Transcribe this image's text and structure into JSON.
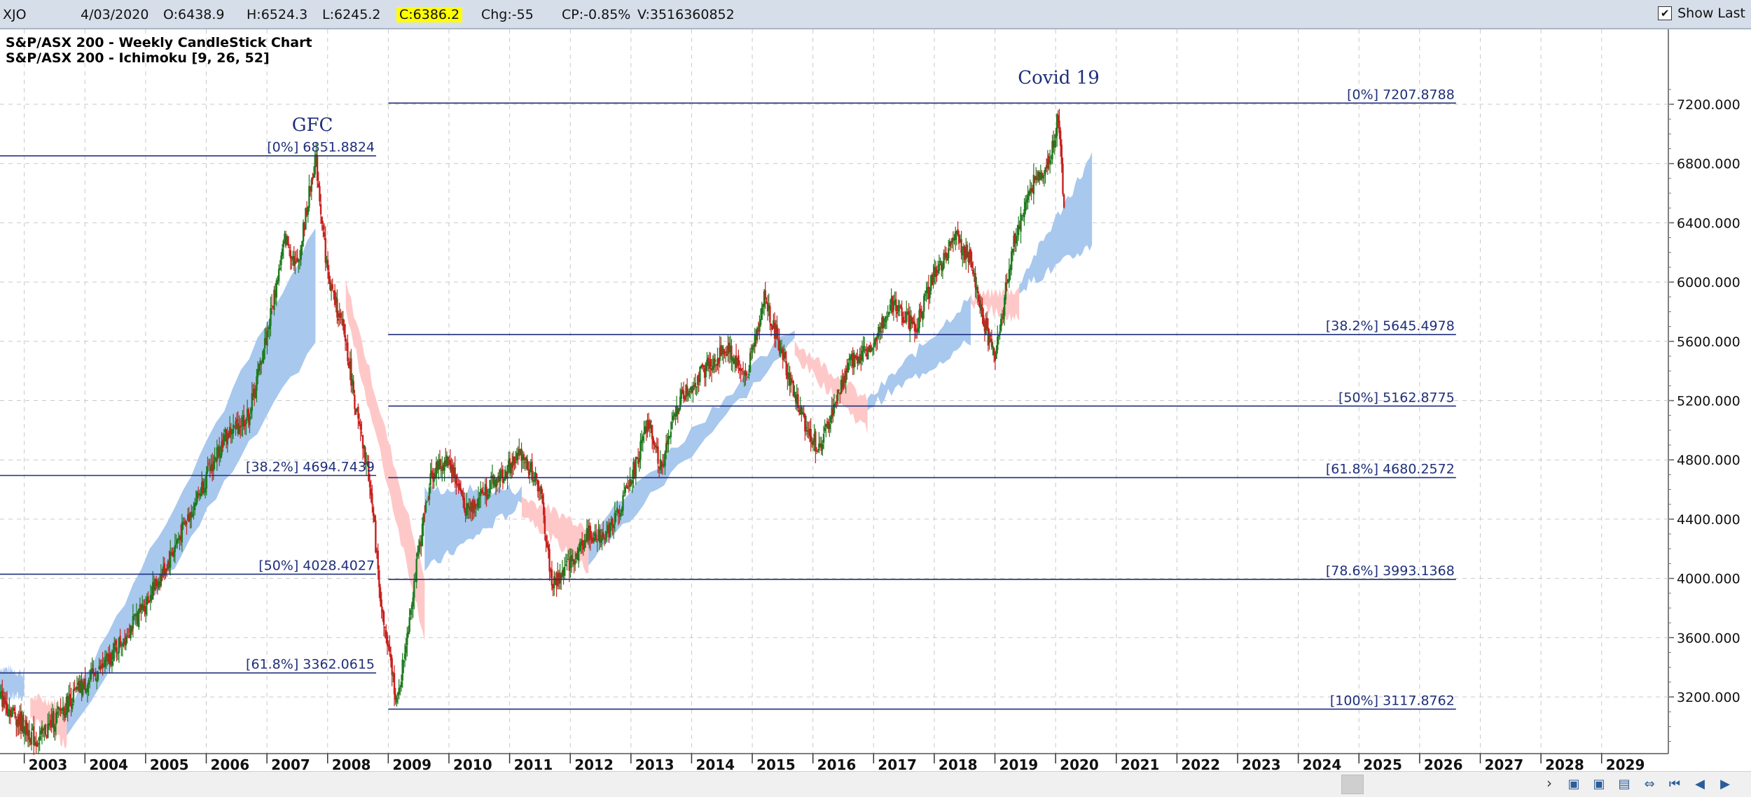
{
  "toolbar": {
    "symbol": "XJO",
    "date": "4/03/2020",
    "open": "O:6438.9",
    "high": "H:6524.3",
    "low": "L:6245.2",
    "close": "C:6386.2",
    "change": "Chg:-55",
    "change_pct": "CP:-0.85%",
    "volume": "V:3516360852",
    "show_last_label": "Show Last",
    "show_last_checked": true,
    "close_highlight_color": "#ffff00"
  },
  "chart_titles": [
    "S&P/ASX 200 - Weekly CandleStick Chart",
    "S&P/ASX 200 - Ichimoku [9, 26, 52]"
  ],
  "chart_data": {
    "type": "candlestick",
    "title": "S&P/ASX 200 - Weekly CandleStick Chart",
    "subtitle": "S&P/ASX 200 - Ichimoku [9, 26, 52]",
    "ylim": [
      2800,
      7400
    ],
    "y_ticks": [
      3200,
      3600,
      4000,
      4400,
      4800,
      5200,
      5600,
      6000,
      6400,
      6800,
      7200
    ],
    "y_tick_labels": [
      "3200.000",
      "3600.000",
      "4000.000",
      "4400.000",
      "4800.000",
      "5200.000",
      "5600.000",
      "6000.000",
      "6400.000",
      "6800.000",
      "7200.000"
    ],
    "x_start": 2002.6,
    "x_end": 2030.1,
    "year_labels": [
      "2003",
      "2004",
      "2005",
      "2006",
      "2007",
      "2008",
      "2009",
      "2010",
      "2011",
      "2012",
      "2013",
      "2014",
      "2015",
      "2016",
      "2017",
      "2018",
      "2019",
      "2020",
      "2021",
      "2022",
      "2023",
      "2024",
      "2025",
      "2026",
      "2027",
      "2028",
      "2029"
    ],
    "grid": true,
    "price_path": [
      [
        2002.6,
        3200
      ],
      [
        2002.9,
        3050
      ],
      [
        2003.2,
        2900
      ],
      [
        2003.5,
        3050
      ],
      [
        2003.9,
        3250
      ],
      [
        2004.3,
        3400
      ],
      [
        2004.8,
        3700
      ],
      [
        2005.3,
        4050
      ],
      [
        2005.8,
        4500
      ],
      [
        2006.3,
        4950
      ],
      [
        2006.7,
        5100
      ],
      [
        2007.0,
        5650
      ],
      [
        2007.3,
        6300
      ],
      [
        2007.5,
        6100
      ],
      [
        2007.8,
        6850
      ],
      [
        2008.0,
        6050
      ],
      [
        2008.3,
        5600
      ],
      [
        2008.5,
        5050
      ],
      [
        2008.7,
        4650
      ],
      [
        2008.9,
        3750
      ],
      [
        2009.15,
        3150
      ],
      [
        2009.4,
        3900
      ],
      [
        2009.7,
        4700
      ],
      [
        2010.0,
        4800
      ],
      [
        2010.3,
        4450
      ],
      [
        2010.6,
        4600
      ],
      [
        2010.9,
        4700
      ],
      [
        2011.2,
        4850
      ],
      [
        2011.5,
        4600
      ],
      [
        2011.7,
        3950
      ],
      [
        2012.0,
        4100
      ],
      [
        2012.3,
        4300
      ],
      [
        2012.6,
        4300
      ],
      [
        2012.9,
        4550
      ],
      [
        2013.3,
        5050
      ],
      [
        2013.5,
        4750
      ],
      [
        2013.8,
        5200
      ],
      [
        2014.2,
        5400
      ],
      [
        2014.6,
        5550
      ],
      [
        2014.9,
        5350
      ],
      [
        2015.2,
        5900
      ],
      [
        2015.5,
        5500
      ],
      [
        2015.8,
        5100
      ],
      [
        2016.1,
        4850
      ],
      [
        2016.3,
        5100
      ],
      [
        2016.6,
        5450
      ],
      [
        2016.9,
        5550
      ],
      [
        2017.3,
        5850
      ],
      [
        2017.7,
        5700
      ],
      [
        2018.0,
        6050
      ],
      [
        2018.35,
        6300
      ],
      [
        2018.6,
        6150
      ],
      [
        2018.9,
        5600
      ],
      [
        2019.0,
        5500
      ],
      [
        2019.3,
        6250
      ],
      [
        2019.6,
        6650
      ],
      [
        2019.9,
        6800
      ],
      [
        2020.05,
        7150
      ],
      [
        2020.15,
        6400
      ]
    ],
    "ichimoku_cloud": {
      "bullish_color": "#a8c8ee",
      "bearish_color": "#ffc8c8",
      "segments": [
        {
          "color": "bullish",
          "x": [
            2002.6,
            2003.0
          ],
          "top": [
            3400,
            3360
          ],
          "bottom": [
            3200,
            3200
          ]
        },
        {
          "color": "bearish",
          "x": [
            2003.1,
            2003.7
          ],
          "top": [
            3200,
            3150
          ],
          "bottom": [
            3050,
            2880
          ]
        },
        {
          "color": "bullish",
          "x": [
            2003.7,
            2007.8
          ],
          "top": [
            3100,
            6350
          ],
          "bottom": [
            2950,
            5600
          ]
        },
        {
          "color": "bearish",
          "x": [
            2008.3,
            2009.6
          ],
          "top": [
            6000,
            4000
          ],
          "bottom": [
            5800,
            3600
          ]
        },
        {
          "color": "bullish",
          "x": [
            2009.6,
            2011.2
          ],
          "top": [
            4600,
            4600
          ],
          "bottom": [
            4050,
            4500
          ]
        },
        {
          "color": "bearish",
          "x": [
            2011.2,
            2012.3
          ],
          "top": [
            4550,
            4350
          ],
          "bottom": [
            4450,
            4050
          ]
        },
        {
          "color": "bullish",
          "x": [
            2012.3,
            2015.7
          ],
          "top": [
            4300,
            5700
          ],
          "bottom": [
            4100,
            5600
          ]
        },
        {
          "color": "bearish",
          "x": [
            2015.7,
            2016.9
          ],
          "top": [
            5600,
            5200
          ],
          "bottom": [
            5500,
            5000
          ]
        },
        {
          "color": "bullish",
          "x": [
            2016.9,
            2018.6
          ],
          "top": [
            5200,
            5900
          ],
          "bottom": [
            5150,
            5600
          ]
        },
        {
          "color": "bearish",
          "x": [
            2018.6,
            2019.4
          ],
          "top": [
            5900,
            5950
          ],
          "bottom": [
            5850,
            5750
          ]
        },
        {
          "color": "bullish",
          "x": [
            2019.4,
            2020.6
          ],
          "top": [
            6000,
            6850
          ],
          "bottom": [
            5950,
            6250
          ]
        }
      ]
    },
    "fibonacci": [
      {
        "label": "[0%] 6851.8824",
        "value": 6851.8824,
        "x_start": 2002.6,
        "x_end": 2008.8
      },
      {
        "label": "[38.2%] 4694.7439",
        "value": 4694.7439,
        "x_start": 2002.6,
        "x_end": 2008.8
      },
      {
        "label": "[50%] 4028.4027",
        "value": 4028.4027,
        "x_start": 2002.6,
        "x_end": 2008.8
      },
      {
        "label": "[61.8%] 3362.0615",
        "value": 3362.0615,
        "x_start": 2002.6,
        "x_end": 2008.8
      },
      {
        "label": "[0%] 7207.8788",
        "value": 7207.8788,
        "x_start": 2009.0,
        "x_end": 2026.6
      },
      {
        "label": "[38.2%] 5645.4978",
        "value": 5645.4978,
        "x_start": 2009.0,
        "x_end": 2026.6
      },
      {
        "label": "[50%] 5162.8775",
        "value": 5162.8775,
        "x_start": 2009.0,
        "x_end": 2026.6
      },
      {
        "label": "[61.8%] 4680.2572",
        "value": 4680.2572,
        "x_start": 2009.0,
        "x_end": 2026.6
      },
      {
        "label": "[78.6%] 3993.1368",
        "value": 3993.1368,
        "x_start": 2009.0,
        "x_end": 2026.6
      },
      {
        "label": "[100%] 3117.8762",
        "value": 3117.8762,
        "x_start": 2009.0,
        "x_end": 2026.6
      }
    ],
    "annotations": [
      {
        "text": "GFC",
        "x": 2007.75,
        "y": 7020
      },
      {
        "text": "Covid 19",
        "x": 2020.05,
        "y": 7340
      }
    ],
    "colors": {
      "up": "#1f7a1f",
      "down": "#c8201d",
      "fib_line": "#1f2f7a",
      "grid": "#c9c9c9",
      "annotation": "#1f2f7a"
    }
  }
}
